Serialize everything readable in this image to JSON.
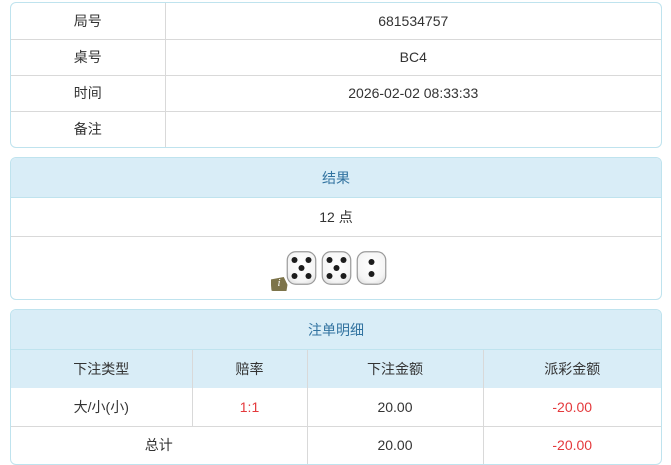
{
  "colors": {
    "panel_border": "#bfe3ee",
    "heading_bg": "#d9edf7",
    "heading_text": "#3273a0",
    "divider": "#d9d9d9",
    "text": "#333333",
    "negative": "#e4393c"
  },
  "info": {
    "rows": [
      {
        "label": "局号",
        "value": "681534757"
      },
      {
        "label": "桌号",
        "value": "BC4"
      },
      {
        "label": "时间",
        "value": "2026-02-02 08:33:33"
      },
      {
        "label": "备注",
        "value": ""
      }
    ]
  },
  "result": {
    "title": "结果",
    "points": "12 点",
    "dice": [
      5,
      5,
      2
    ],
    "info_icon": "i"
  },
  "bets": {
    "title": "注单明细",
    "columns": [
      "下注类型",
      "赔率",
      "下注金额",
      "派彩金额"
    ],
    "rows": [
      {
        "type": "大/小(小)",
        "odds": "1:1",
        "bet": "20.00",
        "payout": "-20.00"
      }
    ],
    "total": {
      "label": "总计",
      "bet": "20.00",
      "payout": "-20.00"
    }
  }
}
